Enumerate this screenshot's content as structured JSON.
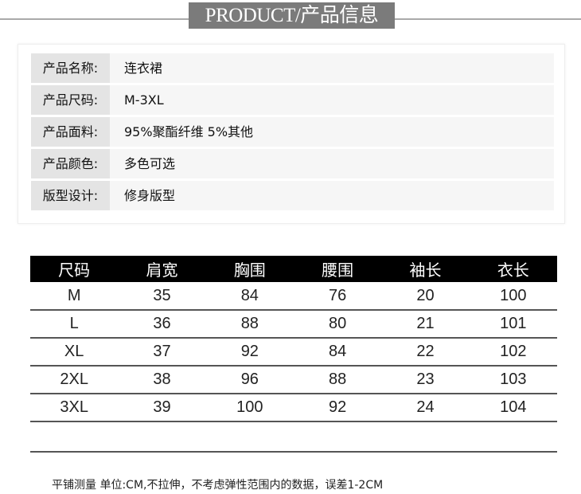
{
  "title": "PRODUCT/产品信息",
  "info": [
    {
      "label": "产品名称:",
      "value": "连衣裙"
    },
    {
      "label": "产品尺码:",
      "value": "M-3XL"
    },
    {
      "label": "产品面料:",
      "value": "95%聚酯纤维 5%其他"
    },
    {
      "label": "产品颜色:",
      "value": "多色可选"
    },
    {
      "label": "版型设计:",
      "value": "修身版型"
    }
  ],
  "size_table": {
    "headers": [
      "尺码",
      "肩宽",
      "胸围",
      "腰围",
      "袖长",
      "衣长"
    ],
    "rows": [
      [
        "M",
        "35",
        "84",
        "76",
        "20",
        "100"
      ],
      [
        "L",
        "36",
        "88",
        "80",
        "21",
        "101"
      ],
      [
        "XL",
        "37",
        "92",
        "84",
        "22",
        "102"
      ],
      [
        "2XL",
        "38",
        "96",
        "88",
        "23",
        "103"
      ],
      [
        "3XL",
        "39",
        "100",
        "92",
        "24",
        "104"
      ]
    ]
  },
  "note": "平铺测量 单位:CM,不拉伸，不考虑弹性范围内的数据，误差1-2CM"
}
